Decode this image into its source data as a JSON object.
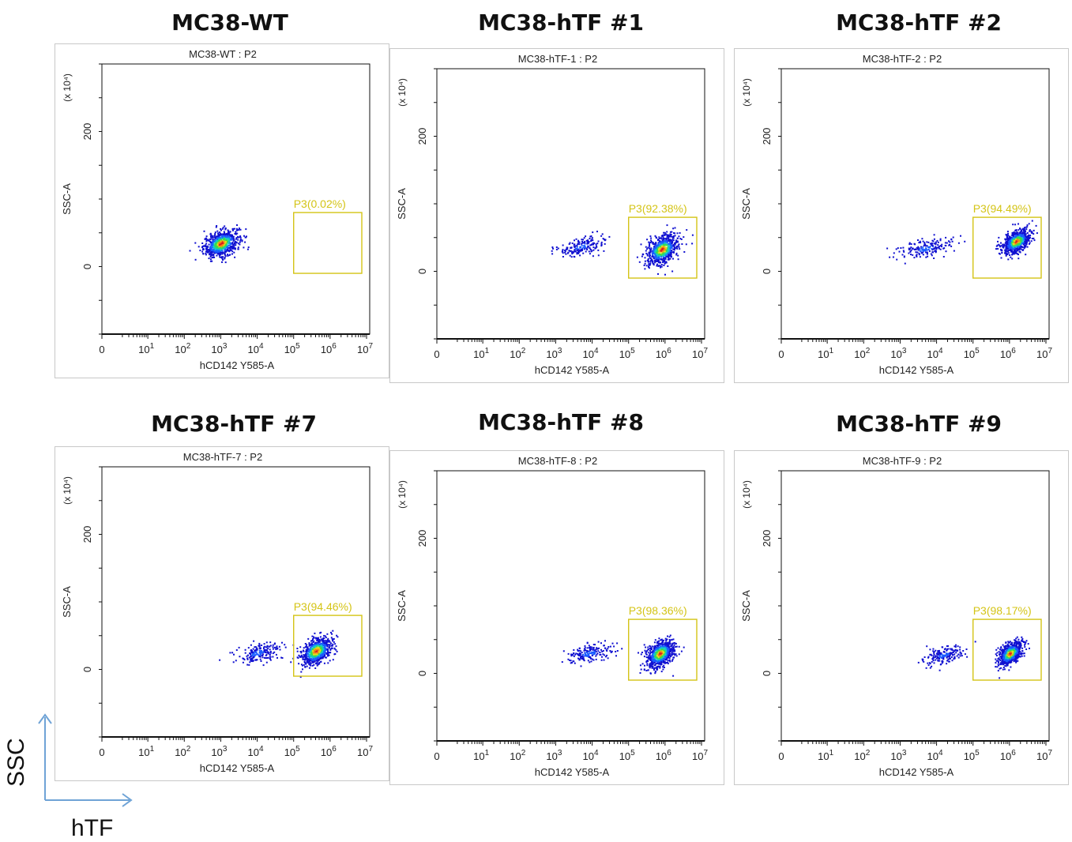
{
  "chart_data": [
    {
      "type": "scatter",
      "title": "MC38-WT",
      "subtitle": "MC38-WT : P2",
      "xlabel": "hCD142 Y585-A",
      "ylabel": "SSC-A",
      "y_multiplier": "(x 10⁴)",
      "x_scale": "log",
      "xlim": [
        0,
        10000000
      ],
      "ylim": [
        -100,
        300
      ],
      "y_ticks": [
        "0",
        "200"
      ],
      "gate": {
        "name": "P3",
        "percent": "0.02%",
        "x_range": [
          100000,
          10000000
        ],
        "y_range": [
          -10,
          80
        ]
      },
      "populations": [
        {
          "x_center": 1000,
          "y_center": 35,
          "x_spread_decades": 0.45,
          "y_spread": 12
        }
      ]
    },
    {
      "type": "scatter",
      "title": "MC38-hTF #1",
      "subtitle": "MC38-hTF-1 : P2",
      "xlabel": "hCD142 Y585-A",
      "ylabel": "SSC-A",
      "y_multiplier": "(x 10⁴)",
      "x_scale": "log",
      "xlim": [
        0,
        10000000
      ],
      "ylim": [
        -100,
        300
      ],
      "y_ticks": [
        "0",
        "200"
      ],
      "gate": {
        "name": "P3",
        "percent": "92.38%",
        "x_range": [
          100000,
          10000000
        ],
        "y_range": [
          -10,
          80
        ]
      },
      "populations": [
        {
          "x_center": 800000,
          "y_center": 33,
          "x_spread_decades": 0.4,
          "y_spread": 13
        },
        {
          "x_center": 5000,
          "y_center": 38,
          "x_spread_decades": 0.6,
          "y_spread": 8
        }
      ]
    },
    {
      "type": "scatter",
      "title": "MC38-hTF #2",
      "subtitle": "MC38-hTF-2 : P2",
      "xlabel": "hCD142 Y585-A",
      "ylabel": "SSC-A",
      "y_multiplier": "(x 10⁴)",
      "x_scale": "log",
      "xlim": [
        0,
        10000000
      ],
      "ylim": [
        -100,
        300
      ],
      "y_ticks": [
        "0",
        "200"
      ],
      "gate": {
        "name": "P3",
        "percent": "94.49%",
        "x_range": [
          100000,
          10000000
        ],
        "y_range": [
          -10,
          80
        ]
      },
      "populations": [
        {
          "x_center": 1500000,
          "y_center": 45,
          "x_spread_decades": 0.35,
          "y_spread": 10
        },
        {
          "x_center": 5000,
          "y_center": 35,
          "x_spread_decades": 0.7,
          "y_spread": 8
        }
      ]
    },
    {
      "type": "scatter",
      "title": "MC38-hTF #7",
      "subtitle": "MC38-hTF-7 : P2",
      "xlabel": "hCD142 Y585-A",
      "ylabel": "SSC-A",
      "y_multiplier": "(x 10⁴)",
      "x_scale": "log",
      "xlim": [
        0,
        10000000
      ],
      "ylim": [
        -100,
        300
      ],
      "y_ticks": [
        "0",
        "200"
      ],
      "gate": {
        "name": "P3",
        "percent": "94.46%",
        "x_range": [
          100000,
          10000000
        ],
        "y_range": [
          -10,
          80
        ]
      },
      "populations": [
        {
          "x_center": 400000,
          "y_center": 28,
          "x_spread_decades": 0.4,
          "y_spread": 12
        },
        {
          "x_center": 10000,
          "y_center": 25,
          "x_spread_decades": 0.6,
          "y_spread": 9
        }
      ]
    },
    {
      "type": "scatter",
      "title": "MC38-hTF #8",
      "subtitle": "MC38-hTF-8 : P2",
      "xlabel": "hCD142 Y585-A",
      "ylabel": "SSC-A",
      "y_multiplier": "(x 10⁴)",
      "x_scale": "log",
      "xlim": [
        0,
        10000000
      ],
      "ylim": [
        -100,
        300
      ],
      "y_ticks": [
        "0",
        "200"
      ],
      "gate": {
        "name": "P3",
        "percent": "98.36%",
        "x_range": [
          100000,
          10000000
        ],
        "y_range": [
          -10,
          80
        ]
      },
      "populations": [
        {
          "x_center": 700000,
          "y_center": 30,
          "x_spread_decades": 0.35,
          "y_spread": 12
        },
        {
          "x_center": 8000,
          "y_center": 30,
          "x_spread_decades": 0.6,
          "y_spread": 8
        }
      ]
    },
    {
      "type": "scatter",
      "title": "MC38-hTF #9",
      "subtitle": "MC38-hTF-9 : P2",
      "xlabel": "hCD142 Y585-A",
      "ylabel": "SSC-A",
      "y_multiplier": "(x 10⁴)",
      "x_scale": "log",
      "xlim": [
        0,
        10000000
      ],
      "ylim": [
        -100,
        300
      ],
      "y_ticks": [
        "0",
        "200"
      ],
      "gate": {
        "name": "P3",
        "percent": "98.17%",
        "x_range": [
          100000,
          10000000
        ],
        "y_range": [
          -10,
          80
        ]
      },
      "populations": [
        {
          "x_center": 1000000,
          "y_center": 30,
          "x_spread_decades": 0.3,
          "y_spread": 10
        },
        {
          "x_center": 15000,
          "y_center": 28,
          "x_spread_decades": 0.5,
          "y_spread": 8
        }
      ]
    }
  ],
  "corner_axes": {
    "y_label": "SSC",
    "x_label": "hTF"
  },
  "x_tick_exponents": [
    "1",
    "2",
    "3",
    "4",
    "5",
    "6",
    "7"
  ],
  "colors": {
    "gate": "#d4c416",
    "axis": "#111111",
    "arrow": "#6fa3d6",
    "density": [
      "#1010d0",
      "#1a5cff",
      "#14c8c8",
      "#3cdc46",
      "#e6dc1e",
      "#f08c14",
      "#dc1e1e"
    ]
  }
}
